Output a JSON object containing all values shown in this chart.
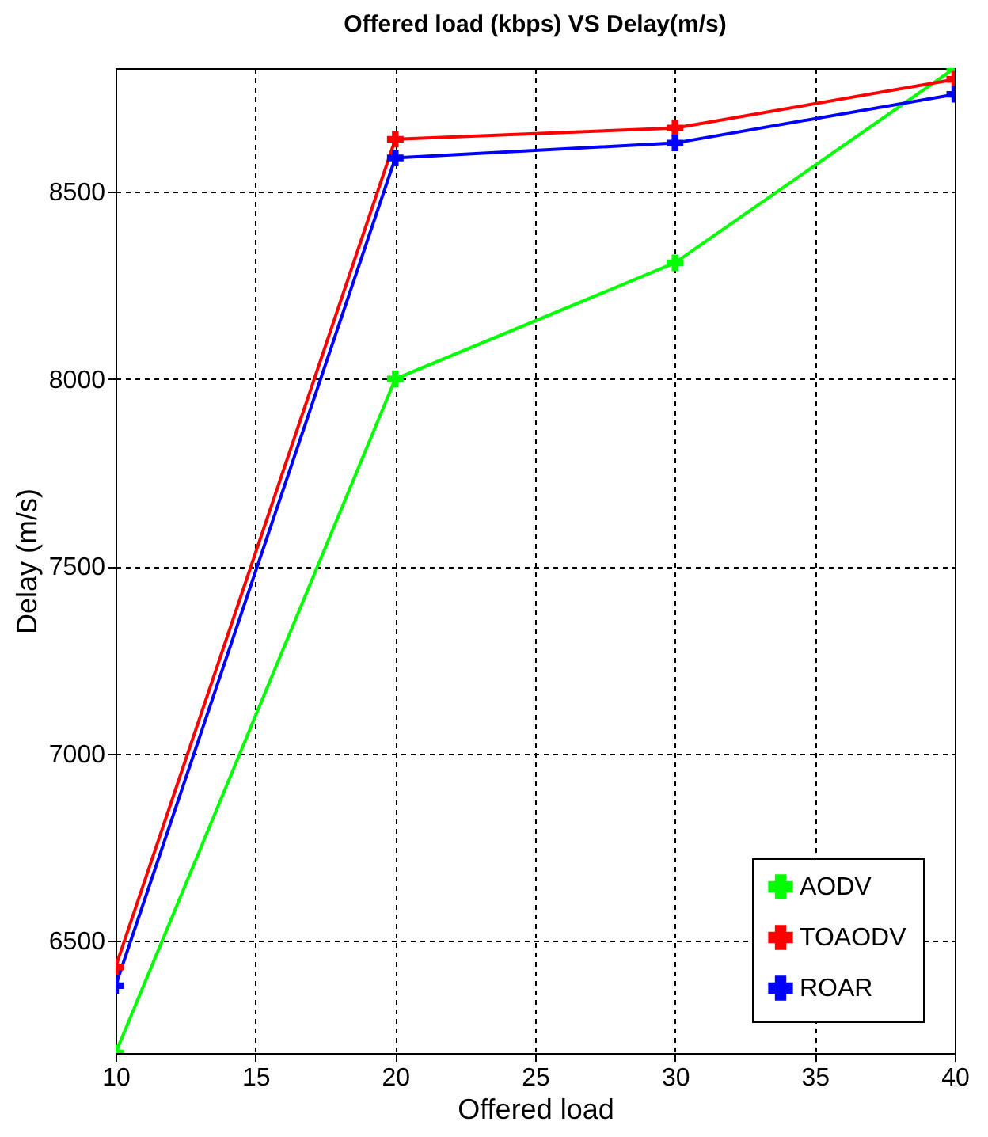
{
  "chart_data": {
    "type": "line",
    "title": "Offered load (kbps) VS Delay(m/s)",
    "xlabel": "Offered load",
    "ylabel": "Delay (m/s)",
    "x": [
      10,
      20,
      30,
      40
    ],
    "series": [
      {
        "name": "AODV",
        "color": "#00ff00",
        "values": [
          6200,
          8000,
          8310,
          8830
        ]
      },
      {
        "name": "TOAODV",
        "color": "#ff0000",
        "values": [
          6430,
          8640,
          8670,
          8800
        ]
      },
      {
        "name": "ROAR",
        "color": "#0000ff",
        "values": [
          6380,
          8590,
          8630,
          8760
        ]
      }
    ],
    "xlim": [
      10,
      40
    ],
    "xticks": [
      10,
      15,
      20,
      25,
      30,
      35,
      40
    ],
    "ylim": [
      6200,
      8830
    ],
    "yticks": [
      6500,
      7000,
      7500,
      8000,
      8500
    ],
    "grid": true,
    "legend": "bottom right",
    "marker": "cross",
    "line_style": "solid"
  }
}
